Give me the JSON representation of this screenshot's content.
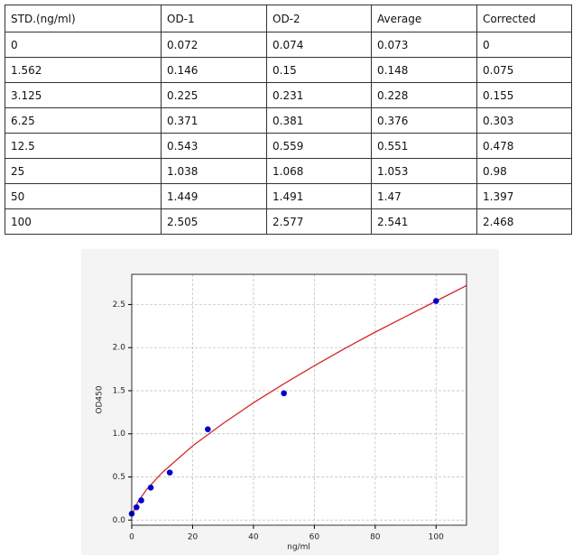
{
  "table": {
    "header": [
      "STD.(ng/ml)",
      "OD-1",
      "OD-2",
      "Average",
      "Corrected"
    ],
    "rows": [
      [
        "0",
        "0.072",
        "0.074",
        "0.073",
        "0"
      ],
      [
        "1.562",
        "0.146",
        "0.15",
        "0.148",
        "0.075"
      ],
      [
        "3.125",
        "0.225",
        "0.231",
        "0.228",
        "0.155"
      ],
      [
        "6.25",
        "0.371",
        "0.381",
        "0.376",
        "0.303"
      ],
      [
        "12.5",
        "0.543",
        "0.559",
        "0.551",
        "0.478"
      ],
      [
        "25",
        "1.038",
        "1.068",
        "1.053",
        "0.98"
      ],
      [
        "50",
        "1.449",
        "1.491",
        "1.47",
        "1.397"
      ],
      [
        "100",
        "2.505",
        "2.577",
        "2.541",
        "2.468"
      ]
    ]
  },
  "chart_data": {
    "type": "scatter",
    "xlabel": "ng/ml",
    "ylabel": "OD450",
    "xlim": [
      0,
      110
    ],
    "ylim": [
      -0.06,
      2.85
    ],
    "xticks": [
      0,
      20,
      40,
      60,
      80,
      100
    ],
    "yticks": [
      {
        "value": 0,
        "label": "0.0"
      },
      0.5,
      {
        "value": 1,
        "label": "1.0"
      },
      1.5,
      {
        "value": 2,
        "label": "2.0"
      },
      2.5
    ],
    "grid": true,
    "series": [
      {
        "type": "scatter",
        "color": "#0000cc",
        "x": [
          0,
          1.562,
          3.125,
          6.25,
          12.5,
          25,
          50,
          100
        ],
        "values": [
          0.073,
          0.148,
          0.228,
          0.376,
          0.551,
          1.053,
          1.47,
          2.541
        ]
      },
      {
        "type": "line",
        "color": "#d62728",
        "x": [
          0,
          2,
          5,
          10,
          20,
          30,
          40,
          50,
          60,
          70,
          80,
          90,
          100,
          110
        ],
        "values": [
          0.05,
          0.21,
          0.36,
          0.55,
          0.86,
          1.12,
          1.36,
          1.58,
          1.79,
          1.99,
          2.18,
          2.36,
          2.54,
          2.72
        ]
      }
    ]
  }
}
